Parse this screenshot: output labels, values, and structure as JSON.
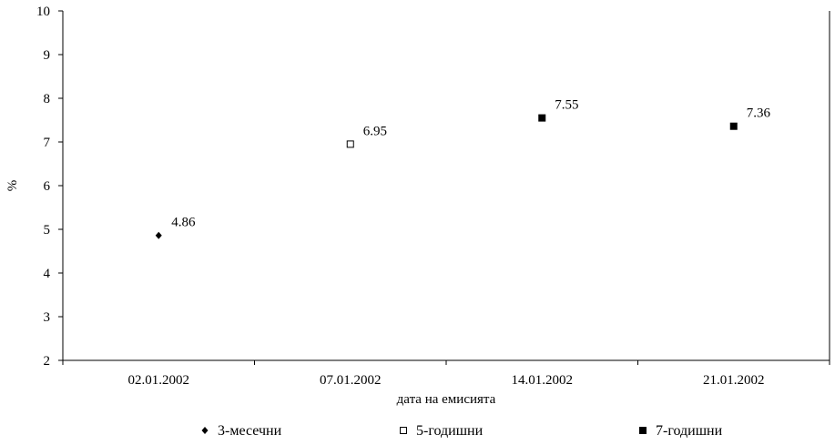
{
  "chart_data": {
    "type": "scatter",
    "title": "",
    "xlabel": "дата на емисията",
    "ylabel": "%",
    "categories": [
      "02.01.2002",
      "07.01.2002",
      "14.01.2002",
      "21.01.2002"
    ],
    "ylim": [
      2,
      10
    ],
    "yticks": [
      "2",
      "3",
      "4",
      "5",
      "6",
      "7",
      "8",
      "9",
      "10"
    ],
    "grid": false,
    "legend_position": "bottom",
    "series": [
      {
        "name": "3-месечни",
        "marker": "diamond-filled",
        "color": "#000000",
        "points": [
          {
            "x": "02.01.2002",
            "y": 4.86,
            "label": "4.86"
          }
        ]
      },
      {
        "name": "5-годишни",
        "marker": "square-open",
        "color": "#000000",
        "points": [
          {
            "x": "07.01.2002",
            "y": 6.95,
            "label": "6.95"
          }
        ]
      },
      {
        "name": "7-годишни",
        "marker": "square-filled",
        "color": "#000000",
        "points": [
          {
            "x": "14.01.2002",
            "y": 7.55,
            "label": "7.55"
          },
          {
            "x": "21.01.2002",
            "y": 7.36,
            "label": "7.36"
          }
        ]
      }
    ]
  }
}
